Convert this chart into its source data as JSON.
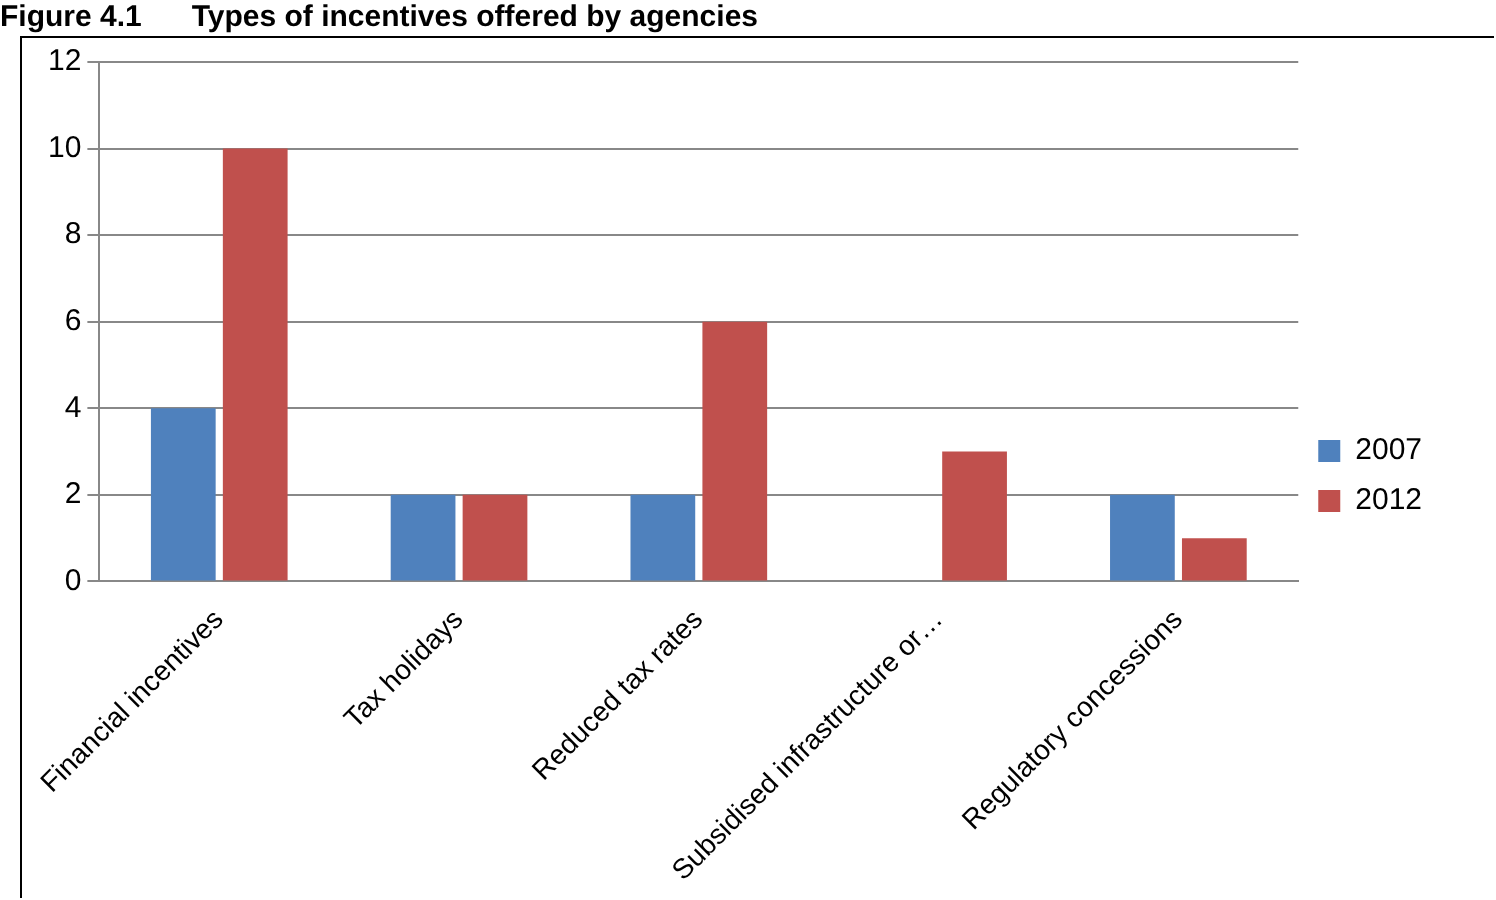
{
  "chart_data": {
    "type": "bar",
    "title": "Figure 4.1      Types of incentives offered by agencies",
    "categories": [
      "Financial incentives",
      "Tax holidays",
      "Reduced tax rates",
      "Subsidised infrastructure or…",
      "Regulatory concessions"
    ],
    "series": [
      {
        "name": "2007",
        "color": "#4f81bd",
        "values": [
          4,
          2,
          2,
          0,
          2
        ]
      },
      {
        "name": "2012",
        "color": "#c0504d",
        "values": [
          10,
          2,
          6,
          3,
          1
        ]
      }
    ],
    "ylim": [
      0,
      12
    ],
    "yticks": [
      0,
      2,
      4,
      6,
      8,
      10,
      12
    ],
    "grid": "y",
    "legend": "right"
  }
}
